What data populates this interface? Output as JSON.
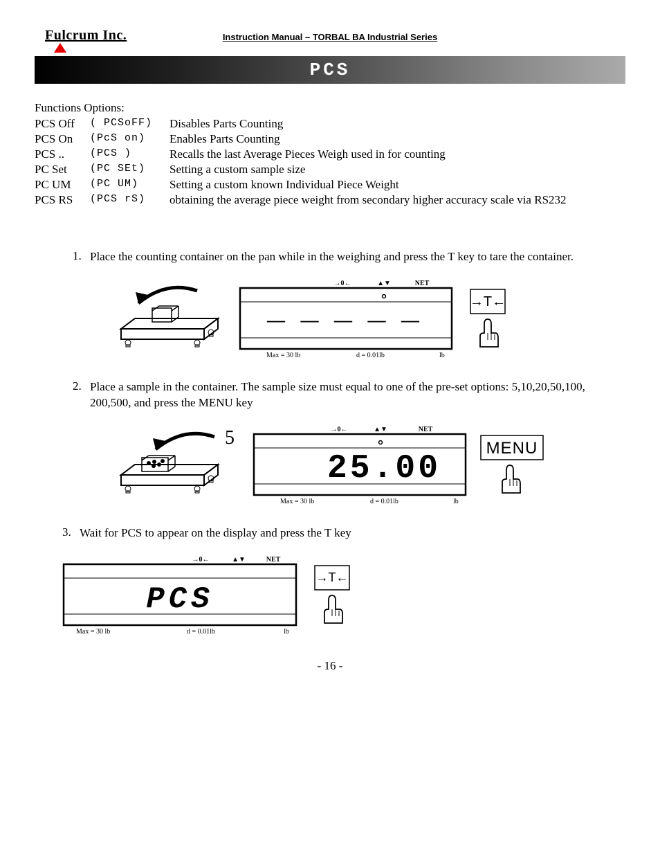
{
  "header": {
    "company": "Fulcrum Inc.",
    "manual_title": "Instruction Manual – TORBAL BA Industrial Series"
  },
  "banner": "PCS",
  "options": {
    "heading": "Functions Options:",
    "rows": [
      {
        "name": "PCS Off",
        "code": "( PCSoFF)",
        "desc": "Disables Parts Counting"
      },
      {
        "name": "PCS On",
        "code": "(PcS on)",
        "desc": "Enables Parts Counting"
      },
      {
        "name": "PCS  ..",
        "code": "(PCS   )",
        "desc": "Recalls the last Average Pieces Weigh used in for counting"
      },
      {
        "name": "PC Set",
        "code": "(PC SEt)",
        "desc": "Setting a custom sample size"
      },
      {
        "name": "PC UM",
        "code": "(PC UM)",
        "desc": "Setting a custom known Individual Piece Weight"
      },
      {
        "name": "PCS RS",
        "code": "(PCS rS)",
        "desc": "obtaining the average piece weight from secondary higher accuracy scale via RS232"
      }
    ]
  },
  "steps": [
    {
      "n": "1.",
      "text": "Place the counting container on the pan while in the weighing and press the T key to tare the container."
    },
    {
      "n": "2.",
      "text": "Place a sample in the container. The sample size must equal to one of the pre-set options: 5,10,20,50,100, 200,500, and press the MENU key"
    },
    {
      "n": "3.",
      "text": "Wait for PCS to appear on the display and press the T key"
    }
  ],
  "display": {
    "top_indicators": {
      "zero": "→0←",
      "stable": "▲▼",
      "net": "NET"
    },
    "footer": {
      "max": "Max = 30 lb",
      "d": "d = 0.01lb",
      "unit": "lb"
    },
    "reading_dashes": "— — — — —",
    "reading_value": "25.00",
    "reading_pcs": "PCS"
  },
  "keys": {
    "tare": "→T←",
    "menu": "MENU"
  },
  "sample_qty": "5",
  "page_number": "- 16 -",
  "colors": {
    "triangle": "#e60000"
  }
}
